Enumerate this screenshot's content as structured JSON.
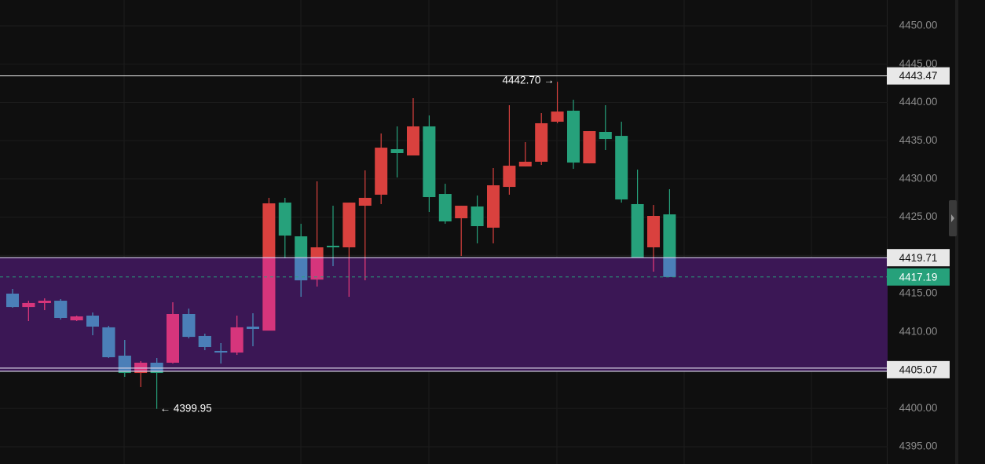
{
  "chart_data": {
    "type": "candlestick",
    "open": [
      4415.01,
      4413.26,
      4413.78,
      4414.08,
      4411.52,
      4412.13,
      4410.6,
      4406.9,
      4404.64,
      4405.98,
      4405.98,
      4412.34,
      4409.47,
      4407.52,
      4407.31,
      4410.7,
      4410.18,
      4426.91,
      4422.5,
      4416.85,
      4421.27,
      4421.06,
      4426.5,
      4427.94,
      4433.89,
      4433.07,
      4436.87,
      4428.04,
      4424.86,
      4426.4,
      4423.63,
      4428.96,
      4431.63,
      4432.25,
      4437.48,
      4438.92,
      4432.04,
      4436.15,
      4435.63,
      4426.71,
      4421.06,
      4425.37
    ],
    "high": [
      4415.62,
      4414.08,
      4414.39,
      4414.29,
      4412.13,
      4412.54,
      4410.8,
      4408.95,
      4406.18,
      4406.59,
      4413.88,
      4413.06,
      4409.77,
      4408.54,
      4412.13,
      4412.44,
      4427.53,
      4427.53,
      4424.14,
      4429.68,
      4426.5,
      4426.91,
      4431.12,
      4435.94,
      4436.87,
      4440.56,
      4438.3,
      4429.37,
      4426.5,
      4427.83,
      4431.43,
      4439.64,
      4434.81,
      4438.61,
      4442.7,
      4440.35,
      4436.25,
      4439.64,
      4437.48,
      4431.22,
      4426.6,
      4428.66
    ],
    "low": [
      4413.16,
      4411.42,
      4412.85,
      4411.62,
      4411.42,
      4409.57,
      4406.59,
      4404.13,
      4402.8,
      4399.95,
      4405.87,
      4409.16,
      4407.62,
      4405.87,
      4407.0,
      4408.13,
      4410.18,
      4419.63,
      4414.6,
      4415.93,
      4418.6,
      4414.6,
      4416.75,
      4426.71,
      4430.19,
      4433.07,
      4425.68,
      4424.14,
      4419.93,
      4421.58,
      4421.58,
      4427.94,
      4431.63,
      4431.84,
      4437.28,
      4431.32,
      4432.04,
      4433.79,
      4426.91,
      4419.73,
      4417.88,
      4417.19
    ],
    "close": [
      4413.26,
      4413.78,
      4414.08,
      4411.83,
      4412.03,
      4410.7,
      4406.7,
      4404.64,
      4405.98,
      4404.64,
      4412.34,
      4409.36,
      4408.03,
      4407.31,
      4410.6,
      4410.39,
      4426.81,
      4422.6,
      4416.75,
      4421.06,
      4421.06,
      4426.91,
      4427.53,
      4434.09,
      4433.38,
      4436.87,
      4427.63,
      4424.45,
      4426.5,
      4423.83,
      4429.17,
      4431.73,
      4432.25,
      4437.28,
      4438.81,
      4432.14,
      4436.25,
      4435.22,
      4427.32,
      4419.73,
      4425.17,
      4417.19
    ],
    "up_color": "#d9413e",
    "down_color": "#26a17b",
    "zone_up_color": "#d6357c",
    "zone_down_color": "#4b7fb8",
    "ylim": [
      4392.74,
      4453.39
    ],
    "yticks": [
      {
        "value": 4395,
        "label": "4395.00"
      },
      {
        "value": 4400,
        "label": "4400.00"
      },
      {
        "value": 4405,
        "label": "4405.00"
      },
      {
        "value": 4410,
        "label": "4410.00"
      },
      {
        "value": 4415,
        "label": "4415.00"
      },
      {
        "value": 4420,
        "label": "4420.00"
      },
      {
        "value": 4425,
        "label": "4425.00"
      },
      {
        "value": 4430,
        "label": "4430.00"
      },
      {
        "value": 4435,
        "label": "4435.00"
      },
      {
        "value": 4440,
        "label": "4440.00"
      },
      {
        "value": 4445,
        "label": "4445.00"
      },
      {
        "value": 4450,
        "label": "4450.00"
      }
    ],
    "grid": true,
    "zone": {
      "color": "#3b1755",
      "top": {
        "value": 4419.71,
        "label": "4419.71"
      },
      "bottom": {
        "value": 4405.07,
        "label": "4405.07"
      }
    },
    "price_lines": [
      {
        "value": 4443.47,
        "label": "4443.47",
        "color": "#e8e8e8",
        "dashed": false
      },
      {
        "value": 4417.19,
        "label": "4417.19",
        "color": "#26a17b",
        "dashed": true
      }
    ],
    "high_label": {
      "value": 4442.7,
      "label": "4442.70 →"
    },
    "low_label": {
      "value": 4399.95,
      "label": "← 4399.95"
    }
  }
}
